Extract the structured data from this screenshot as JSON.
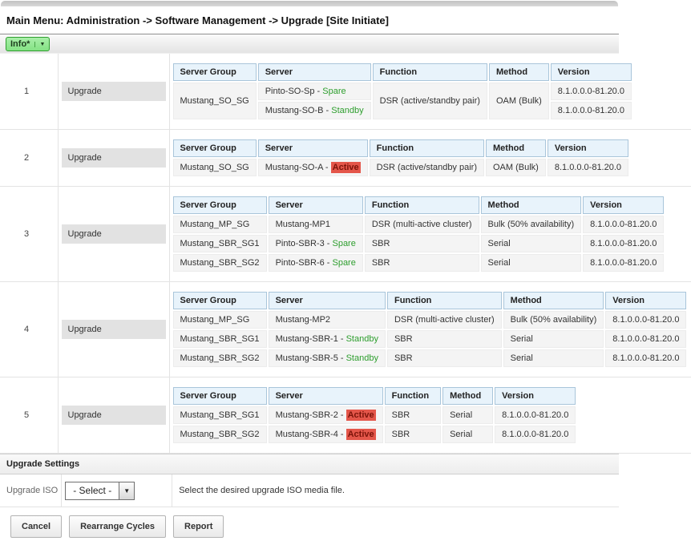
{
  "header": {
    "title": "Main Menu: Administration -> Software Management -> Upgrade [Site Initiate]",
    "info_button_label": "Info*",
    "info_caret": "▼"
  },
  "colors": {
    "status_ok": "#2e9e2e",
    "status_alert_bg": "#e4564a",
    "status_alert_text": "#7c140a",
    "header_cell_bg": "#e8f3fb",
    "header_cell_border": "#a9c5da",
    "info_btn_top": "#a9efa9",
    "info_btn_bottom": "#84e284",
    "info_btn_border": "#2f9e2f"
  },
  "table_columns": [
    "Server Group",
    "Server",
    "Function",
    "Method",
    "Version"
  ],
  "cycles": [
    {
      "number": "1",
      "action_label": "Upgrade",
      "rows": [
        {
          "cells": [
            {
              "col": "server-group",
              "text": "Mustang_SO_SG",
              "rowspan": 2
            },
            {
              "col": "server",
              "text": "Pinto-SO-Sp - ",
              "status": {
                "text": "Spare",
                "kind": "good"
              }
            },
            {
              "col": "function",
              "text": "DSR (active/standby pair)",
              "rowspan": 2
            },
            {
              "col": "method",
              "text": "OAM (Bulk)",
              "rowspan": 2
            },
            {
              "col": "version",
              "text": "8.1.0.0.0-81.20.0"
            }
          ]
        },
        {
          "cells": [
            {
              "col": "server",
              "text": "Mustang-SO-B - ",
              "status": {
                "text": "Standby",
                "kind": "good"
              }
            },
            {
              "col": "version",
              "text": "8.1.0.0.0-81.20.0"
            }
          ]
        }
      ]
    },
    {
      "number": "2",
      "action_label": "Upgrade",
      "rows": [
        {
          "cells": [
            {
              "col": "server-group",
              "text": "Mustang_SO_SG"
            },
            {
              "col": "server",
              "text": "Mustang-SO-A - ",
              "status": {
                "text": "Active",
                "kind": "alert"
              }
            },
            {
              "col": "function",
              "text": "DSR (active/standby pair)"
            },
            {
              "col": "method",
              "text": "OAM (Bulk)"
            },
            {
              "col": "version",
              "text": "8.1.0.0.0-81.20.0"
            }
          ]
        }
      ]
    },
    {
      "number": "3",
      "action_label": "Upgrade",
      "rows": [
        {
          "cells": [
            {
              "col": "server-group",
              "text": "Mustang_MP_SG"
            },
            {
              "col": "server",
              "text": "Mustang-MP1"
            },
            {
              "col": "function",
              "text": "DSR (multi-active cluster)"
            },
            {
              "col": "method",
              "text": "Bulk (50% availability)"
            },
            {
              "col": "version",
              "text": "8.1.0.0.0-81.20.0"
            }
          ]
        },
        {
          "cells": [
            {
              "col": "server-group",
              "text": "Mustang_SBR_SG1"
            },
            {
              "col": "server",
              "text": "Pinto-SBR-3 - ",
              "status": {
                "text": "Spare",
                "kind": "good"
              }
            },
            {
              "col": "function",
              "text": "SBR"
            },
            {
              "col": "method",
              "text": "Serial"
            },
            {
              "col": "version",
              "text": "8.1.0.0.0-81.20.0"
            }
          ]
        },
        {
          "cells": [
            {
              "col": "server-group",
              "text": "Mustang_SBR_SG2"
            },
            {
              "col": "server",
              "text": "Pinto-SBR-6 - ",
              "status": {
                "text": "Spare",
                "kind": "good"
              }
            },
            {
              "col": "function",
              "text": "SBR"
            },
            {
              "col": "method",
              "text": "Serial"
            },
            {
              "col": "version",
              "text": "8.1.0.0.0-81.20.0"
            }
          ]
        }
      ]
    },
    {
      "number": "4",
      "action_label": "Upgrade",
      "rows": [
        {
          "cells": [
            {
              "col": "server-group",
              "text": "Mustang_MP_SG"
            },
            {
              "col": "server",
              "text": "Mustang-MP2"
            },
            {
              "col": "function",
              "text": "DSR (multi-active cluster)"
            },
            {
              "col": "method",
              "text": "Bulk (50% availability)"
            },
            {
              "col": "version",
              "text": "8.1.0.0.0-81.20.0"
            }
          ]
        },
        {
          "cells": [
            {
              "col": "server-group",
              "text": "Mustang_SBR_SG1"
            },
            {
              "col": "server",
              "text": "Mustang-SBR-1 - ",
              "status": {
                "text": "Standby",
                "kind": "good"
              }
            },
            {
              "col": "function",
              "text": "SBR"
            },
            {
              "col": "method",
              "text": "Serial"
            },
            {
              "col": "version",
              "text": "8.1.0.0.0-81.20.0"
            }
          ]
        },
        {
          "cells": [
            {
              "col": "server-group",
              "text": "Mustang_SBR_SG2"
            },
            {
              "col": "server",
              "text": "Mustang-SBR-5 - ",
              "status": {
                "text": "Standby",
                "kind": "good"
              }
            },
            {
              "col": "function",
              "text": "SBR"
            },
            {
              "col": "method",
              "text": "Serial"
            },
            {
              "col": "version",
              "text": "8.1.0.0.0-81.20.0"
            }
          ]
        }
      ]
    },
    {
      "number": "5",
      "action_label": "Upgrade",
      "rows": [
        {
          "cells": [
            {
              "col": "server-group",
              "text": "Mustang_SBR_SG1"
            },
            {
              "col": "server",
              "text": "Mustang-SBR-2 - ",
              "status": {
                "text": "Active",
                "kind": "alert"
              }
            },
            {
              "col": "function",
              "text": "SBR"
            },
            {
              "col": "method",
              "text": "Serial"
            },
            {
              "col": "version",
              "text": "8.1.0.0.0-81.20.0"
            }
          ]
        },
        {
          "cells": [
            {
              "col": "server-group",
              "text": "Mustang_SBR_SG2"
            },
            {
              "col": "server",
              "text": "Mustang-SBR-4 - ",
              "status": {
                "text": "Active",
                "kind": "alert"
              }
            },
            {
              "col": "function",
              "text": "SBR"
            },
            {
              "col": "method",
              "text": "Serial"
            },
            {
              "col": "version",
              "text": "8.1.0.0.0-81.20.0"
            }
          ]
        }
      ]
    }
  ],
  "settings": {
    "section_title": "Upgrade Settings",
    "field_label": "Upgrade ISO",
    "select_value": "- Select -",
    "select_caret": "▼",
    "hint": "Select the desired upgrade ISO media file."
  },
  "footer_buttons": [
    {
      "label": "Cancel"
    },
    {
      "label": "Rearrange Cycles"
    },
    {
      "label": "Report"
    }
  ]
}
